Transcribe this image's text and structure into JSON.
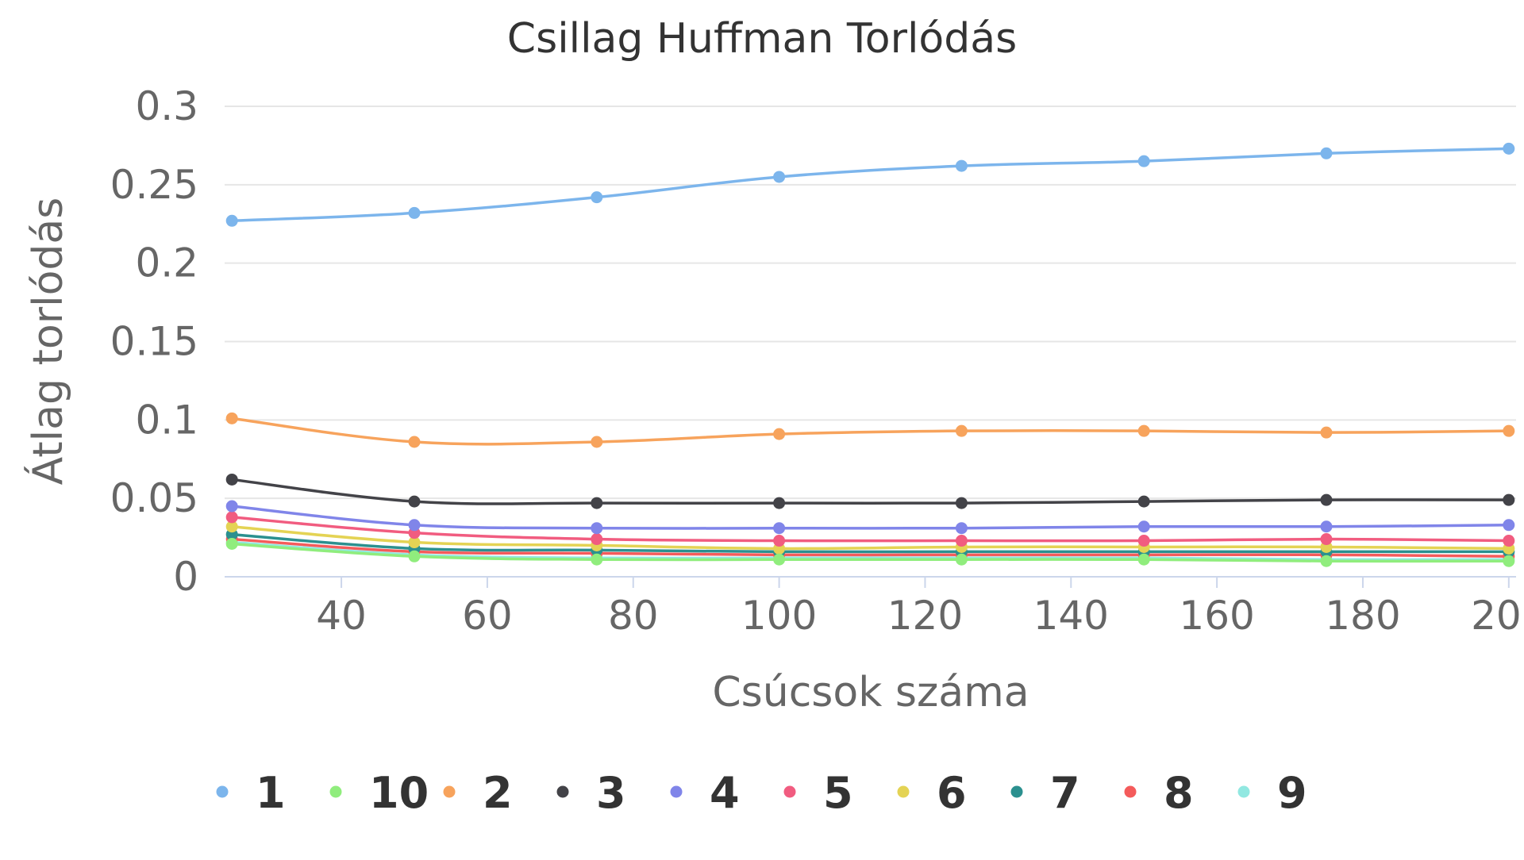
{
  "chart_data": {
    "type": "line",
    "title": "Csillag Huffman Torlódás",
    "xlabel": "Csúcsok száma",
    "ylabel": "Átlag torlódás",
    "x": [
      25,
      50,
      75,
      100,
      125,
      150,
      175,
      200
    ],
    "xlim": [
      24,
      201
    ],
    "xticks": [
      40,
      60,
      80,
      100,
      120,
      140,
      160,
      180,
      200
    ],
    "ylim": [
      0,
      0.3
    ],
    "yticks": [
      0,
      0.05,
      0.1,
      0.15,
      0.2,
      0.25,
      0.3
    ],
    "ytick_labels": [
      "0",
      "0.05",
      "0.1",
      "0.15",
      "0.2",
      "0.25",
      "0.3"
    ],
    "grid": true,
    "legend_position": "bottom",
    "series": [
      {
        "name": "1",
        "color": "#7cb5ec",
        "values": [
          0.227,
          0.232,
          0.242,
          0.255,
          0.262,
          0.265,
          0.27,
          0.273
        ]
      },
      {
        "name": "10",
        "color": "#90ed7d",
        "values": [
          0.021,
          0.013,
          0.011,
          0.011,
          0.011,
          0.011,
          0.01,
          0.01
        ]
      },
      {
        "name": "2",
        "color": "#f7a35c",
        "values": [
          0.101,
          0.086,
          0.086,
          0.091,
          0.093,
          0.093,
          0.092,
          0.093
        ]
      },
      {
        "name": "3",
        "color": "#434348",
        "values": [
          0.062,
          0.048,
          0.047,
          0.047,
          0.047,
          0.048,
          0.049,
          0.049
        ]
      },
      {
        "name": "4",
        "color": "#8085e9",
        "values": [
          0.045,
          0.033,
          0.031,
          0.031,
          0.031,
          0.032,
          0.032,
          0.033
        ]
      },
      {
        "name": "5",
        "color": "#f15c80",
        "values": [
          0.038,
          0.028,
          0.024,
          0.023,
          0.023,
          0.023,
          0.024,
          0.023
        ]
      },
      {
        "name": "6",
        "color": "#e4d354",
        "values": [
          0.032,
          0.022,
          0.02,
          0.018,
          0.019,
          0.019,
          0.019,
          0.018
        ]
      },
      {
        "name": "7",
        "color": "#2b908f",
        "values": [
          0.027,
          0.018,
          0.017,
          0.016,
          0.016,
          0.016,
          0.016,
          0.016
        ]
      },
      {
        "name": "8",
        "color": "#f45b5b",
        "values": [
          0.024,
          0.016,
          0.015,
          0.014,
          0.014,
          0.014,
          0.014,
          0.013
        ]
      },
      {
        "name": "9",
        "color": "#91e8e1",
        "values": [
          0.022,
          0.014,
          0.012,
          0.012,
          0.012,
          0.012,
          0.011,
          0.011
        ]
      }
    ]
  }
}
